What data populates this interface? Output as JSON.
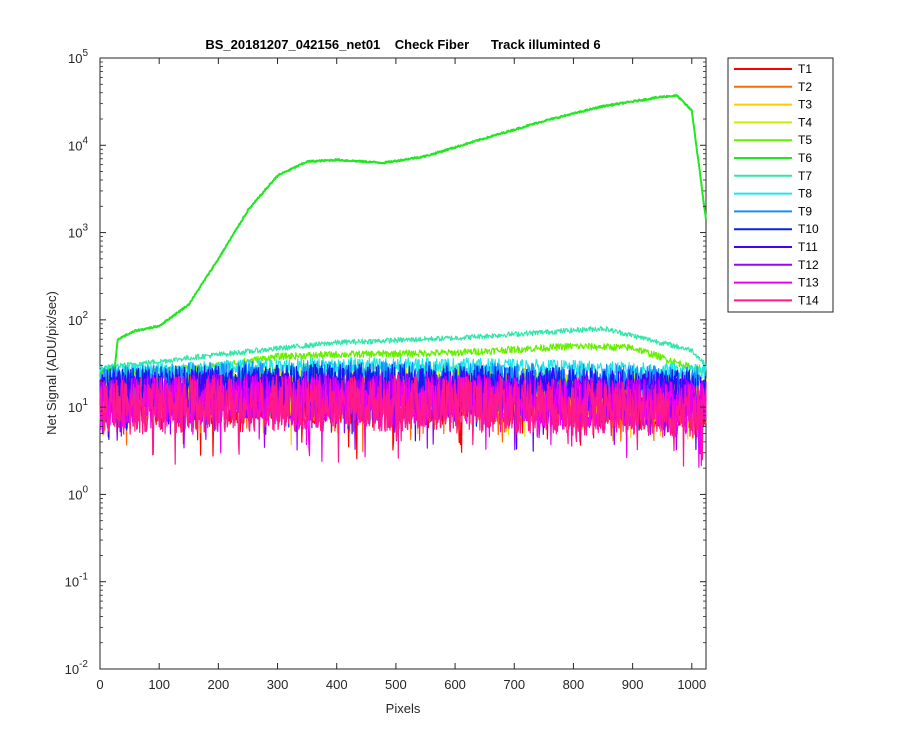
{
  "chart_data": {
    "type": "line",
    "title": "BS_20181207_042156_net01    Check Fiber      Track illuminted 6",
    "xlabel": "Pixels",
    "ylabel": "Net Signal (ADU/pix/sec)",
    "xlim": [
      0,
      1024
    ],
    "ylim": [
      0.01,
      100000
    ],
    "yscale": "log",
    "grid": false,
    "legend_position": "outside-right",
    "x_ticks": [
      "0",
      "100",
      "200",
      "300",
      "400",
      "500",
      "600",
      "700",
      "800",
      "900",
      "1000"
    ],
    "y_tick_exponents": [
      "-2",
      "-1",
      "0",
      "1",
      "2",
      "3",
      "4",
      "5"
    ],
    "y_tick_base": "10",
    "x_tick_values": [
      0,
      100,
      200,
      300,
      400,
      500,
      600,
      700,
      800,
      900,
      1000
    ],
    "y_tick_values": [
      0.01,
      0.1,
      1,
      10,
      100,
      1000,
      10000,
      100000
    ],
    "series": [
      {
        "name": "T1",
        "color": "#ff0000",
        "x": [
          0,
          200,
          400,
          600,
          800,
          1024
        ],
        "y": [
          11,
          12,
          12,
          12,
          11,
          10
        ]
      },
      {
        "name": "T2",
        "color": "#ff6a00",
        "x": [
          0,
          200,
          400,
          600,
          800,
          1024
        ],
        "y": [
          12,
          13,
          13,
          13,
          12,
          11
        ]
      },
      {
        "name": "T3",
        "color": "#ffcc00",
        "x": [
          0,
          200,
          400,
          600,
          800,
          1024
        ],
        "y": [
          14,
          15,
          16,
          15,
          14,
          13
        ]
      },
      {
        "name": "T4",
        "color": "#c8f000",
        "x": [
          0,
          200,
          400,
          600,
          800,
          1024
        ],
        "y": [
          18,
          20,
          21,
          20,
          18,
          16
        ]
      },
      {
        "name": "T5",
        "color": "#66f000",
        "x": [
          0,
          200,
          300,
          400,
          600,
          800,
          900,
          1024
        ],
        "y": [
          22,
          30,
          38,
          40,
          42,
          50,
          48,
          25
        ]
      },
      {
        "name": "T6",
        "color": "#22e622",
        "x": [
          0,
          25,
          30,
          60,
          100,
          150,
          200,
          250,
          300,
          350,
          400,
          480,
          550,
          650,
          750,
          850,
          950,
          975,
          1000,
          1024
        ],
        "y": [
          25,
          28,
          60,
          75,
          85,
          150,
          500,
          1800,
          4500,
          6500,
          6800,
          6300,
          7500,
          12000,
          19000,
          28000,
          36000,
          37000,
          25000,
          1400
        ]
      },
      {
        "name": "T7",
        "color": "#33e6aa",
        "x": [
          0,
          200,
          400,
          600,
          850,
          1000,
          1024
        ],
        "y": [
          28,
          40,
          55,
          62,
          80,
          45,
          30
        ]
      },
      {
        "name": "T8",
        "color": "#22e6e6",
        "x": [
          0,
          200,
          400,
          600,
          800,
          1024
        ],
        "y": [
          25,
          28,
          30,
          30,
          28,
          25
        ]
      },
      {
        "name": "T9",
        "color": "#1a8cff",
        "x": [
          0,
          200,
          400,
          600,
          800,
          1024
        ],
        "y": [
          20,
          22,
          23,
          22,
          21,
          20
        ]
      },
      {
        "name": "T10",
        "color": "#0026e6",
        "x": [
          0,
          200,
          400,
          600,
          800,
          1024
        ],
        "y": [
          17,
          18,
          19,
          18,
          17,
          16
        ]
      },
      {
        "name": "T11",
        "color": "#4400ff",
        "x": [
          0,
          200,
          400,
          600,
          800,
          1024
        ],
        "y": [
          15,
          16,
          16,
          15,
          15,
          14
        ]
      },
      {
        "name": "T12",
        "color": "#a000ff",
        "x": [
          0,
          200,
          400,
          600,
          800,
          1024
        ],
        "y": [
          12,
          13,
          13,
          13,
          12,
          11
        ]
      },
      {
        "name": "T13",
        "color": "#ee00ee",
        "x": [
          0,
          200,
          400,
          600,
          800,
          1024
        ],
        "y": [
          11,
          12,
          12,
          12,
          11,
          10
        ]
      },
      {
        "name": "T14",
        "color": "#ff1a8c",
        "x": [
          0,
          200,
          400,
          600,
          800,
          1024
        ],
        "y": [
          10,
          11,
          11,
          11,
          10,
          9
        ]
      }
    ]
  }
}
